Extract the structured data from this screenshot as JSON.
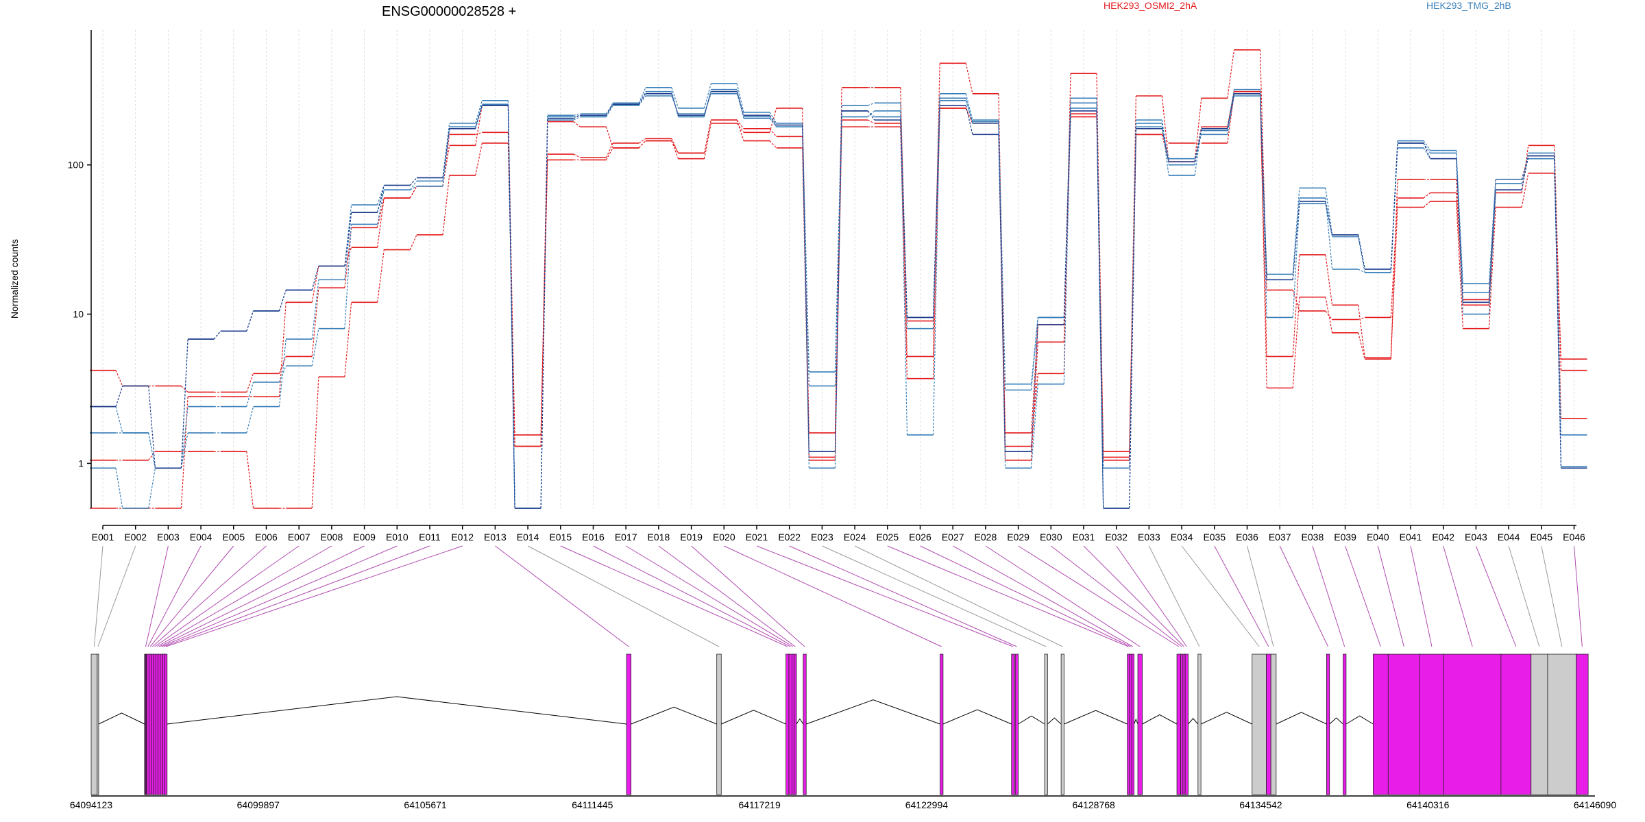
{
  "chart_data": {
    "type": "line",
    "title": "ENSG00000028528 +",
    "ylabel": "Normalized counts",
    "yscale": "log",
    "ylim": [
      0.5,
      800
    ],
    "yticks": [
      {
        "value": 1,
        "label": "1"
      },
      {
        "value": 10,
        "label": "10"
      },
      {
        "value": 100,
        "label": "100"
      }
    ],
    "categories": [
      "E001",
      "E002",
      "E003",
      "E004",
      "E005",
      "E006",
      "E007",
      "E008",
      "E009",
      "E010",
      "E011",
      "E012",
      "E013",
      "E014",
      "E015",
      "E016",
      "E017",
      "E018",
      "E019",
      "E020",
      "E021",
      "E022",
      "E023",
      "E024",
      "E025",
      "E026",
      "E027",
      "E028",
      "E029",
      "E030",
      "E031",
      "E032",
      "E033",
      "E034",
      "E035",
      "E036",
      "E037",
      "E038",
      "E039",
      "E040",
      "E041",
      "E042",
      "E043",
      "E044",
      "E045",
      "E046"
    ],
    "legend": [
      {
        "label": "HEK293_OSMI2_2hA",
        "color": "#e41a1c"
      },
      {
        "label": "HEK293_TMG_2hB",
        "color": "#377eb8"
      }
    ],
    "series": [
      {
        "group": "HEK293_OSMI2_2hA",
        "color": "#e41a1c",
        "values": [
          4.2,
          3.3,
          3.3,
          3.0,
          3.0,
          4.0,
          5.2,
          15,
          38,
          60,
          72,
          135,
          250,
          1.3,
          195,
          180,
          130,
          145,
          110,
          190,
          165,
          240,
          1.1,
          330,
          330,
          5.2,
          480,
          300,
          1.3,
          4.0,
          410,
          1.1,
          290,
          105,
          280,
          590,
          14.5,
          10.5,
          9.2,
          9.5,
          60,
          65,
          12.5,
          65,
          135,
          4.2
        ]
      },
      {
        "group": "HEK293_OSMI2_2hA",
        "color": "#e41a1c",
        "values": [
          1.05,
          1.05,
          1.2,
          1.2,
          1.2,
          0.5,
          0.5,
          3.8,
          12,
          27,
          34,
          85,
          140,
          1.55,
          118,
          112,
          140,
          150,
          120,
          200,
          175,
          155,
          1.6,
          200,
          190,
          9.0,
          240,
          190,
          1.6,
          8.5,
          220,
          1.2,
          160,
          140,
          140,
          300,
          5.2,
          25,
          11.5,
          5.1,
          52,
          57,
          8.0,
          52,
          88,
          5.0
        ]
      },
      {
        "group": "HEK293_OSMI2_2hA",
        "color": "#e41a1c",
        "values": [
          0.5,
          0.5,
          0.5,
          2.8,
          2.8,
          2.8,
          12,
          21,
          28,
          60,
          72,
          160,
          165,
          1.3,
          108,
          108,
          130,
          145,
          120,
          200,
          145,
          130,
          1.05,
          180,
          180,
          3.7,
          240,
          190,
          1.05,
          6.5,
          210,
          1.05,
          160,
          105,
          180,
          310,
          3.2,
          13,
          7.5,
          5.0,
          80,
          80,
          11.5,
          80,
          115,
          2.0
        ]
      },
      {
        "group": "HEK293_TMG_2hB",
        "color": "#377eb8",
        "values": [
          2.4,
          1.6,
          0.93,
          6.8,
          7.7,
          10.5,
          14.5,
          21,
          54,
          73,
          82,
          190,
          270,
          0.5,
          215,
          220,
          260,
          330,
          240,
          350,
          225,
          190,
          4.1,
          250,
          260,
          9.5,
          300,
          200,
          3.1,
          9.5,
          280,
          0.5,
          200,
          100,
          170,
          300,
          18.5,
          70,
          34,
          20,
          145,
          125,
          16,
          80,
          110,
          0.95
        ]
      },
      {
        "group": "HEK293_TMG_2hB",
        "color": "#377eb8",
        "values": [
          1.6,
          1.6,
          0.93,
          2.4,
          2.4,
          3.5,
          4.5,
          8.0,
          40,
          68,
          78,
          180,
          255,
          0.5,
          210,
          215,
          255,
          310,
          210,
          320,
          205,
          180,
          3.3,
          230,
          210,
          8.0,
          280,
          190,
          3.4,
          9.5,
          260,
          0.5,
          180,
          110,
          160,
          290,
          17,
          60,
          20,
          19,
          130,
          110,
          14,
          75,
          120,
          1.55
        ]
      },
      {
        "group": "HEK293_TMG_2hB",
        "color": "#377eb8",
        "values": [
          0.93,
          0.5,
          0.93,
          1.6,
          1.6,
          2.4,
          6.8,
          17,
          48,
          68,
          72,
          175,
          250,
          0.5,
          200,
          210,
          250,
          290,
          220,
          300,
          210,
          180,
          0.93,
          210,
          230,
          1.55,
          270,
          195,
          0.93,
          3.4,
          240,
          0.93,
          190,
          85,
          175,
          320,
          9.5,
          55,
          33,
          19,
          140,
          120,
          10,
          68,
          115,
          0.93
        ]
      },
      {
        "group": "HEK293_TMG_2hB",
        "color": "#1f3c8c",
        "values": [
          2.4,
          3.3,
          0.93,
          6.8,
          7.7,
          10.5,
          14.5,
          21,
          48,
          73,
          82,
          175,
          250,
          0.5,
          205,
          215,
          255,
          300,
          215,
          310,
          215,
          185,
          1.2,
          230,
          200,
          9.5,
          250,
          160,
          1.2,
          8.5,
          230,
          0.5,
          175,
          105,
          175,
          300,
          17,
          57,
          34,
          20,
          140,
          110,
          12,
          68,
          115,
          0.93
        ]
      }
    ],
    "exon_gene_position": [
      {
        "id": "E001",
        "start": 0.0,
        "end": 0.004,
        "color": "#cccccc"
      },
      {
        "id": "E002",
        "start": 0.004,
        "end": 0.005,
        "color": "#cccccc"
      },
      {
        "id": "E003",
        "start": 0.0355,
        "end": 0.037,
        "color": "#5a1a5a"
      },
      {
        "id": "E004",
        "start": 0.037,
        "end": 0.0385,
        "color": "#e81ee8"
      },
      {
        "id": "E005",
        "start": 0.0385,
        "end": 0.04,
        "color": "#e81ee8"
      },
      {
        "id": "E006",
        "start": 0.04,
        "end": 0.0415,
        "color": "#e81ee8"
      },
      {
        "id": "E007",
        "start": 0.0415,
        "end": 0.043,
        "color": "#e81ee8"
      },
      {
        "id": "E008",
        "start": 0.043,
        "end": 0.0445,
        "color": "#e81ee8"
      },
      {
        "id": "E009",
        "start": 0.0445,
        "end": 0.046,
        "color": "#e81ee8"
      },
      {
        "id": "E010",
        "start": 0.046,
        "end": 0.0475,
        "color": "#e81ee8"
      },
      {
        "id": "E011",
        "start": 0.0475,
        "end": 0.049,
        "color": "#e81ee8"
      },
      {
        "id": "E012",
        "start": 0.049,
        "end": 0.0505,
        "color": "#e81ee8"
      },
      {
        "id": "E013",
        "start": 0.356,
        "end": 0.359,
        "color": "#e81ee8"
      },
      {
        "id": "E014",
        "start": 0.416,
        "end": 0.419,
        "color": "#cccccc"
      },
      {
        "id": "E015",
        "start": 0.462,
        "end": 0.464,
        "color": "#e81ee8"
      },
      {
        "id": "E016",
        "start": 0.464,
        "end": 0.466,
        "color": "#e81ee8"
      },
      {
        "id": "E017",
        "start": 0.466,
        "end": 0.4675,
        "color": "#e81ee8"
      },
      {
        "id": "E018",
        "start": 0.4675,
        "end": 0.469,
        "color": "#e81ee8"
      },
      {
        "id": "E019",
        "start": 0.4735,
        "end": 0.4755,
        "color": "#e81ee8"
      },
      {
        "id": "E020",
        "start": 0.5645,
        "end": 0.5665,
        "color": "#e81ee8"
      },
      {
        "id": "E021",
        "start": 0.612,
        "end": 0.614,
        "color": "#e81ee8"
      },
      {
        "id": "E022",
        "start": 0.6145,
        "end": 0.6165,
        "color": "#e81ee8"
      },
      {
        "id": "E023",
        "start": 0.634,
        "end": 0.636,
        "color": "#cccccc"
      },
      {
        "id": "E024",
        "start": 0.645,
        "end": 0.647,
        "color": "#cccccc"
      },
      {
        "id": "E025",
        "start": 0.689,
        "end": 0.6905,
        "color": "#e81ee8"
      },
      {
        "id": "E026",
        "start": 0.6905,
        "end": 0.692,
        "color": "#e81ee8"
      },
      {
        "id": "E027",
        "start": 0.692,
        "end": 0.6935,
        "color": "#e81ee8"
      },
      {
        "id": "E028",
        "start": 0.696,
        "end": 0.699,
        "color": "#e81ee8"
      },
      {
        "id": "E029",
        "start": 0.722,
        "end": 0.7245,
        "color": "#e81ee8"
      },
      {
        "id": "E030",
        "start": 0.7245,
        "end": 0.726,
        "color": "#e81ee8"
      },
      {
        "id": "E031",
        "start": 0.726,
        "end": 0.7275,
        "color": "#e81ee8"
      },
      {
        "id": "E032",
        "start": 0.7275,
        "end": 0.7295,
        "color": "#e81ee8"
      },
      {
        "id": "E033",
        "start": 0.736,
        "end": 0.738,
        "color": "#cccccc"
      },
      {
        "id": "E034",
        "start": 0.772,
        "end": 0.7815,
        "color": "#cccccc"
      },
      {
        "id": "E035",
        "start": 0.7815,
        "end": 0.7845,
        "color": "#e81ee8"
      },
      {
        "id": "E036",
        "start": 0.7845,
        "end": 0.788,
        "color": "#cccccc"
      },
      {
        "id": "E037",
        "start": 0.8215,
        "end": 0.8235,
        "color": "#e81ee8"
      },
      {
        "id": "E038",
        "start": 0.8325,
        "end": 0.8345,
        "color": "#e81ee8"
      },
      {
        "id": "E039",
        "start": 0.8525,
        "end": 0.8625,
        "color": "#e81ee8"
      },
      {
        "id": "E040",
        "start": 0.8625,
        "end": 0.8835,
        "color": "#e81ee8"
      },
      {
        "id": "E041",
        "start": 0.8835,
        "end": 0.8995,
        "color": "#e81ee8"
      },
      {
        "id": "E042",
        "start": 0.8995,
        "end": 0.9375,
        "color": "#e81ee8"
      },
      {
        "id": "E043",
        "start": 0.9375,
        "end": 0.9575,
        "color": "#e81ee8"
      },
      {
        "id": "E044",
        "start": 0.9575,
        "end": 0.9685,
        "color": "#cccccc"
      },
      {
        "id": "E045",
        "start": 0.9685,
        "end": 0.9875,
        "color": "#cccccc"
      },
      {
        "id": "E046",
        "start": 0.9875,
        "end": 0.9955,
        "color": "#e81ee8"
      }
    ],
    "coordinate_axis": {
      "range": [
        64094123,
        64146090
      ],
      "ticks": [
        "64094123",
        "64099897",
        "64105671",
        "64111445",
        "64117219",
        "64122994",
        "64128768",
        "64134542",
        "64140316",
        "64146090"
      ]
    }
  }
}
